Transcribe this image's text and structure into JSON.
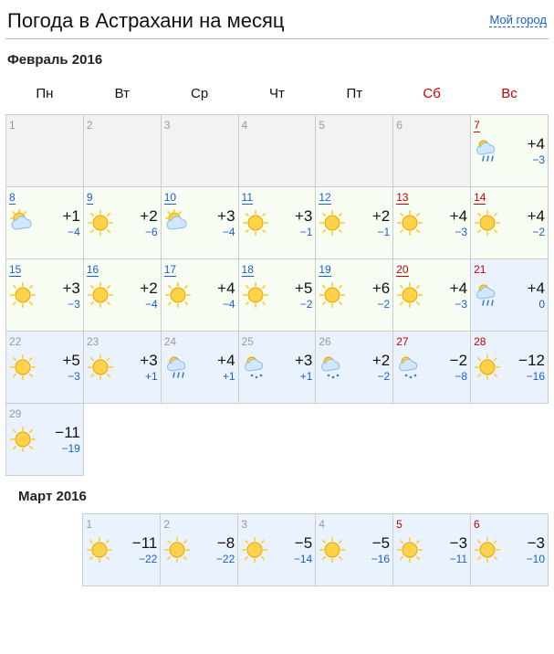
{
  "header": {
    "title": "Погода в Астрахани на месяц",
    "my_city": "Мой город"
  },
  "weekdays": [
    "Пн",
    "Вт",
    "Ср",
    "Чт",
    "Пт",
    "Сб",
    "Вс"
  ],
  "month1": {
    "title": "Февраль 2016",
    "weeks": [
      [
        {
          "d": "1",
          "style": "past",
          "empty": true
        },
        {
          "d": "2",
          "style": "past",
          "empty": true
        },
        {
          "d": "3",
          "style": "past",
          "empty": true
        },
        {
          "d": "4",
          "style": "past",
          "empty": true
        },
        {
          "d": "5",
          "style": "past",
          "empty": true
        },
        {
          "d": "6",
          "style": "past",
          "empty": true
        },
        {
          "d": "7",
          "style": "wlink",
          "icon": "sun_cloud_rain",
          "hi": "+4",
          "lo": "−3"
        }
      ],
      [
        {
          "d": "8",
          "style": "link",
          "icon": "sun_cloud",
          "hi": "+1",
          "lo": "−4"
        },
        {
          "d": "9",
          "style": "link",
          "icon": "sun",
          "hi": "+2",
          "lo": "−6"
        },
        {
          "d": "10",
          "style": "link",
          "icon": "sun_cloud",
          "hi": "+3",
          "lo": "−4"
        },
        {
          "d": "11",
          "style": "link",
          "icon": "sun",
          "hi": "+3",
          "lo": "−1"
        },
        {
          "d": "12",
          "style": "link",
          "icon": "sun",
          "hi": "+2",
          "lo": "−1"
        },
        {
          "d": "13",
          "style": "wlink",
          "icon": "sun",
          "hi": "+4",
          "lo": "−3"
        },
        {
          "d": "14",
          "style": "wlink",
          "icon": "sun",
          "hi": "+4",
          "lo": "−2"
        }
      ],
      [
        {
          "d": "15",
          "style": "link",
          "icon": "sun",
          "hi": "+3",
          "lo": "−3"
        },
        {
          "d": "16",
          "style": "link",
          "icon": "sun",
          "hi": "+2",
          "lo": "−4"
        },
        {
          "d": "17",
          "style": "link",
          "icon": "sun",
          "hi": "+4",
          "lo": "−4"
        },
        {
          "d": "18",
          "style": "link",
          "icon": "sun",
          "hi": "+5",
          "lo": "−2"
        },
        {
          "d": "19",
          "style": "link",
          "icon": "sun",
          "hi": "+6",
          "lo": "−2"
        },
        {
          "d": "20",
          "style": "wlink",
          "icon": "sun",
          "hi": "+4",
          "lo": "−3"
        },
        {
          "d": "21",
          "style": "wpast",
          "icon": "sun_cloud_rain",
          "hi": "+4",
          "lo": "0",
          "bg": "blue"
        }
      ],
      [
        {
          "d": "22",
          "style": "past",
          "icon": "sun",
          "hi": "+5",
          "lo": "−3",
          "bg": "blue"
        },
        {
          "d": "23",
          "style": "past",
          "icon": "sun",
          "hi": "+3",
          "lo": "+1",
          "bg": "blue"
        },
        {
          "d": "24",
          "style": "past",
          "icon": "sun_cloud_rain",
          "hi": "+4",
          "lo": "+1",
          "bg": "blue"
        },
        {
          "d": "25",
          "style": "past",
          "icon": "sun_cloud_snow",
          "hi": "+3",
          "lo": "+1",
          "bg": "blue"
        },
        {
          "d": "26",
          "style": "past",
          "icon": "sun_cloud_snow",
          "hi": "+2",
          "lo": "−2",
          "bg": "blue"
        },
        {
          "d": "27",
          "style": "wpast",
          "icon": "sun_cloud_snow",
          "hi": "−2",
          "lo": "−8",
          "bg": "blue"
        },
        {
          "d": "28",
          "style": "wpast",
          "icon": "sun",
          "hi": "−12",
          "lo": "−16",
          "bg": "blue"
        }
      ],
      [
        {
          "d": "29",
          "style": "past",
          "icon": "sun",
          "hi": "−11",
          "lo": "−19",
          "bg": "blue"
        },
        null,
        null,
        null,
        null,
        null,
        null
      ]
    ]
  },
  "month2": {
    "title": "Март 2016",
    "weeks": [
      [
        null,
        {
          "d": "1",
          "style": "past",
          "icon": "sun",
          "hi": "−11",
          "lo": "−22",
          "bg": "blue"
        },
        {
          "d": "2",
          "style": "past",
          "icon": "sun",
          "hi": "−8",
          "lo": "−22",
          "bg": "blue"
        },
        {
          "d": "3",
          "style": "past",
          "icon": "sun",
          "hi": "−5",
          "lo": "−14",
          "bg": "blue"
        },
        {
          "d": "4",
          "style": "past",
          "icon": "sun",
          "hi": "−5",
          "lo": "−16",
          "bg": "blue"
        },
        {
          "d": "5",
          "style": "wpast",
          "icon": "sun",
          "hi": "−3",
          "lo": "−11",
          "bg": "blue"
        },
        {
          "d": "6",
          "style": "wpast",
          "icon": "sun",
          "hi": "−3",
          "lo": "−10",
          "bg": "blue"
        }
      ]
    ]
  }
}
